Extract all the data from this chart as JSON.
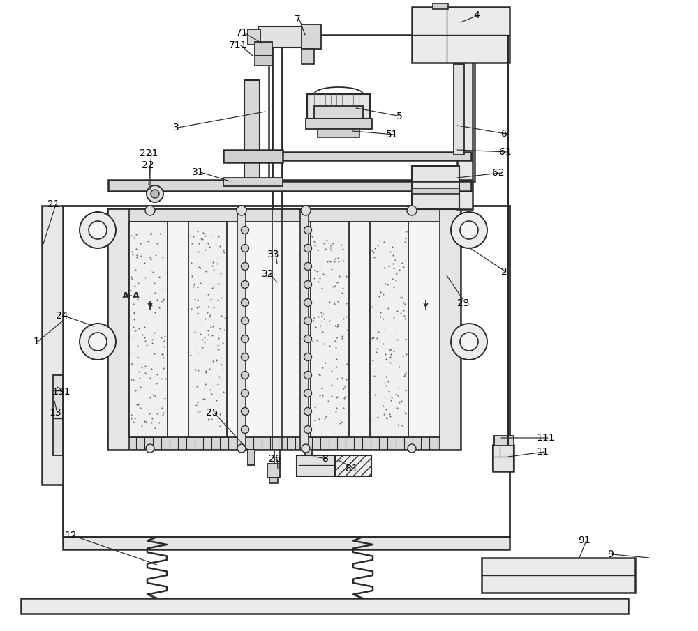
{
  "bg_color": "#ffffff",
  "line_color": "#2a2a2a",
  "fig_width": 10.0,
  "fig_height": 9.05,
  "dpi": 100,
  "labels": [
    [
      "1",
      47,
      490,
      90,
      460
    ],
    [
      "2",
      718,
      390,
      672,
      355
    ],
    [
      "3",
      248,
      183,
      380,
      160
    ],
    [
      "4",
      678,
      22,
      660,
      32
    ],
    [
      "5",
      568,
      167,
      510,
      155
    ],
    [
      "51",
      553,
      193,
      505,
      188
    ],
    [
      "6",
      718,
      192,
      655,
      180
    ],
    [
      "61",
      715,
      218,
      655,
      215
    ],
    [
      "62",
      705,
      248,
      655,
      255
    ],
    [
      "7",
      422,
      28,
      437,
      50
    ],
    [
      "71",
      338,
      47,
      375,
      62
    ],
    [
      "711",
      328,
      65,
      362,
      80
    ],
    [
      "8",
      462,
      658,
      450,
      655
    ],
    [
      "81",
      495,
      672,
      485,
      660
    ],
    [
      "9",
      870,
      795,
      930,
      800
    ],
    [
      "91",
      828,
      775,
      830,
      800
    ],
    [
      "11",
      768,
      648,
      728,
      655
    ],
    [
      "111",
      768,
      628,
      718,
      628
    ],
    [
      "12",
      92,
      768,
      225,
      810
    ],
    [
      "13",
      70,
      592,
      78,
      575
    ],
    [
      "131",
      74,
      562,
      82,
      555
    ],
    [
      "21",
      68,
      293,
      62,
      350
    ],
    [
      "22",
      203,
      237,
      215,
      272
    ],
    [
      "221",
      200,
      220,
      213,
      265
    ],
    [
      "23",
      655,
      435,
      640,
      395
    ],
    [
      "24",
      80,
      453,
      135,
      468
    ],
    [
      "25",
      295,
      592,
      355,
      645
    ],
    [
      "26",
      385,
      658,
      398,
      672
    ],
    [
      "31",
      275,
      247,
      330,
      260
    ],
    [
      "32",
      375,
      393,
      397,
      405
    ],
    [
      "33",
      383,
      365,
      397,
      378
    ]
  ]
}
